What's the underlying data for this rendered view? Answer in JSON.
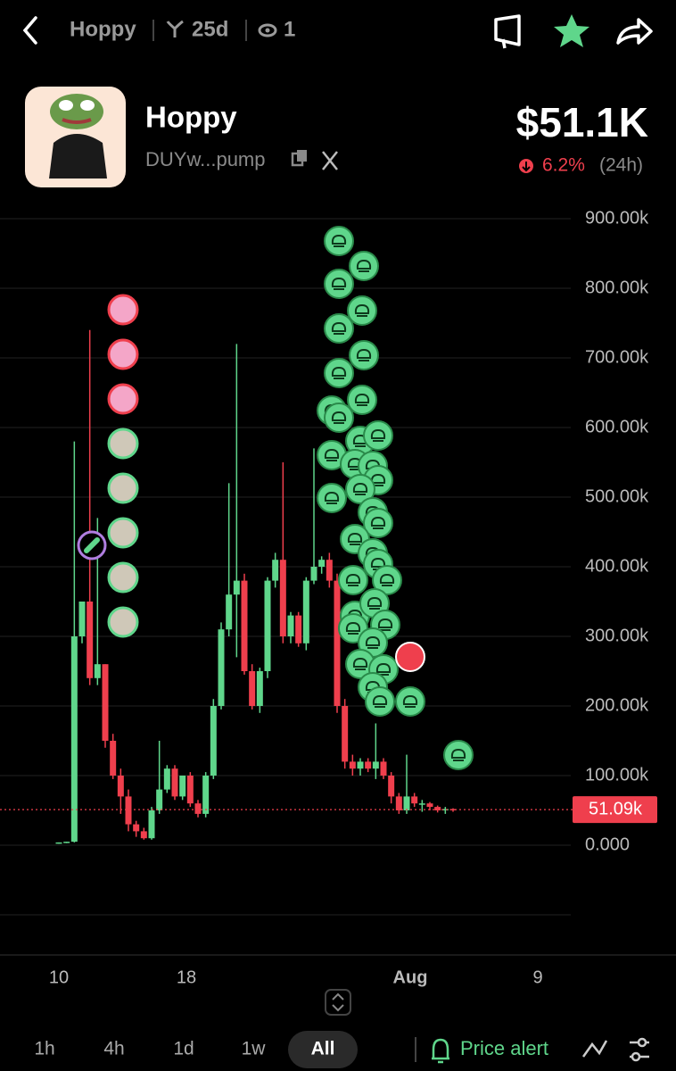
{
  "header": {
    "token": "Hoppy",
    "age": "25d",
    "watchers": "1"
  },
  "token": {
    "name": "Hoppy",
    "address": "DUYw...pump",
    "price": "$51.1K",
    "change": "6.2%",
    "period": "(24h)"
  },
  "chart_data": {
    "type": "candlestick",
    "ylim": [
      -150000,
      920000
    ],
    "yticks": [
      {
        "value": 0,
        "label": "0.000"
      },
      {
        "value": 100000,
        "label": "100.00k"
      },
      {
        "value": 200000,
        "label": "200.00k"
      },
      {
        "value": 300000,
        "label": "300.00k"
      },
      {
        "value": 400000,
        "label": "400.00k"
      },
      {
        "value": 500000,
        "label": "500.00k"
      },
      {
        "value": 600000,
        "label": "600.00k"
      },
      {
        "value": 700000,
        "label": "700.00k"
      },
      {
        "value": 800000,
        "label": "800.00k"
      },
      {
        "value": 900000,
        "label": "900.00k"
      }
    ],
    "xticks": [
      "10",
      "18",
      "Aug",
      "9"
    ],
    "grid": true,
    "up_color": "#5fd68b",
    "down_color": "#ef3f4d",
    "current_price": {
      "value": 51090,
      "label": "51.09k"
    },
    "open": [
      3000,
      4000,
      5000,
      300000,
      350000,
      240000,
      260000,
      150000,
      100000,
      70000,
      30000,
      20000,
      10000,
      50000,
      80000,
      110000,
      70000,
      100000,
      60000,
      45000,
      100000,
      200000,
      310000,
      360000,
      380000,
      250000,
      200000,
      250000,
      380000,
      410000,
      300000,
      330000,
      290000,
      380000,
      400000,
      410000,
      380000,
      200000,
      120000,
      110000,
      120000,
      110000,
      120000,
      100000,
      70000,
      50000,
      70000,
      60000,
      60000,
      55000,
      50000,
      52000
    ],
    "high": [
      4000,
      5000,
      580000,
      350000,
      740000,
      470000,
      260000,
      160000,
      110000,
      80000,
      35000,
      25000,
      55000,
      150000,
      115000,
      115000,
      100000,
      105000,
      65000,
      105000,
      210000,
      320000,
      520000,
      720000,
      390000,
      260000,
      255000,
      385000,
      420000,
      550000,
      335000,
      335000,
      385000,
      570000,
      415000,
      420000,
      390000,
      210000,
      130000,
      125000,
      125000,
      175000,
      125000,
      105000,
      75000,
      130000,
      75000,
      65000,
      62000,
      57000,
      55000,
      53000
    ],
    "low": [
      2000,
      3000,
      4000,
      290000,
      230000,
      230000,
      140000,
      95000,
      45000,
      20000,
      12000,
      8000,
      8000,
      45000,
      75000,
      65000,
      65000,
      55000,
      40000,
      40000,
      95000,
      195000,
      300000,
      270000,
      245000,
      195000,
      190000,
      240000,
      370000,
      290000,
      290000,
      285000,
      280000,
      375000,
      390000,
      370000,
      190000,
      110000,
      100000,
      100000,
      105000,
      95000,
      95000,
      60000,
      45000,
      45000,
      55000,
      48000,
      50000,
      47000,
      45000,
      48000
    ],
    "close": [
      4000,
      5000,
      300000,
      350000,
      240000,
      260000,
      150000,
      100000,
      70000,
      30000,
      20000,
      10000,
      50000,
      80000,
      110000,
      70000,
      100000,
      60000,
      45000,
      100000,
      200000,
      310000,
      360000,
      380000,
      250000,
      200000,
      250000,
      380000,
      410000,
      300000,
      330000,
      290000,
      380000,
      400000,
      410000,
      380000,
      200000,
      120000,
      110000,
      120000,
      110000,
      120000,
      100000,
      70000,
      50000,
      70000,
      60000,
      60000,
      55000,
      50000,
      52000,
      51000
    ]
  },
  "timeframes": [
    "1h",
    "4h",
    "1d",
    "1w",
    "All"
  ],
  "alert": "Price alert"
}
